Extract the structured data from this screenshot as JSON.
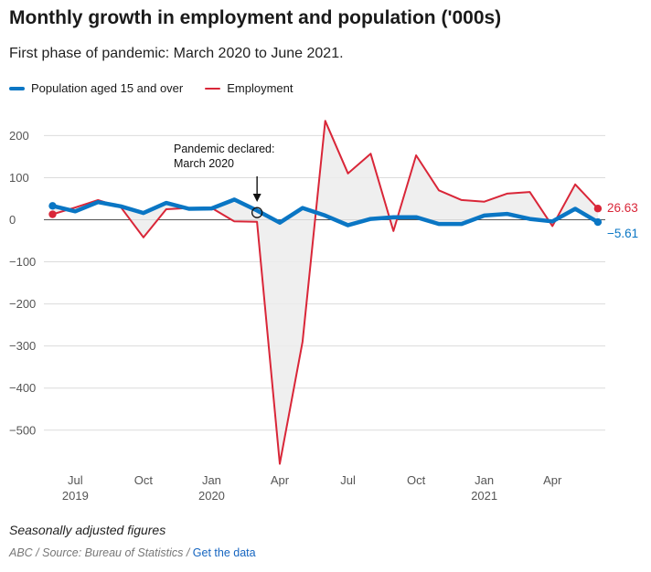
{
  "header": {
    "title": "Monthly growth in employment and population ('000s)",
    "subtitle": "First phase of pandemic: March 2020 to June 2021."
  },
  "legend": {
    "items": [
      {
        "label": "Population aged 15 and over",
        "color": "#0a76c4"
      },
      {
        "label": "Employment",
        "color": "#d92638"
      }
    ]
  },
  "footer": {
    "note": "Seasonally adjusted figures",
    "source_prefix": "ABC / Source: Bureau of Statistics /",
    "data_link": "Get the data"
  },
  "chart_data": {
    "type": "line",
    "title": "Monthly growth in employment and population ('000s)",
    "xlabel": "",
    "ylabel": "",
    "ylim": [
      -580,
      235
    ],
    "yticks": [
      200,
      100,
      0,
      -100,
      -200,
      -300,
      -400,
      -500
    ],
    "ytick_labels": [
      "200",
      "100",
      "0",
      "−100",
      "−200",
      "−300",
      "−400",
      "−500"
    ],
    "x": [
      "2019-06",
      "2019-07",
      "2019-08",
      "2019-09",
      "2019-10",
      "2019-11",
      "2019-12",
      "2020-01",
      "2020-02",
      "2020-03",
      "2020-04",
      "2020-05",
      "2020-06",
      "2020-07",
      "2020-08",
      "2020-09",
      "2020-10",
      "2020-11",
      "2020-12",
      "2021-01",
      "2021-02",
      "2021-03",
      "2021-04",
      "2021-05",
      "2021-06"
    ],
    "xticks": [
      {
        "index": 1,
        "month": "Jul",
        "year": "2019"
      },
      {
        "index": 4,
        "month": "Oct",
        "year": ""
      },
      {
        "index": 7,
        "month": "Jan",
        "year": "2020"
      },
      {
        "index": 10,
        "month": "Apr",
        "year": ""
      },
      {
        "index": 13,
        "month": "Jul",
        "year": ""
      },
      {
        "index": 16,
        "month": "Oct",
        "year": ""
      },
      {
        "index": 19,
        "month": "Jan",
        "year": "2021"
      },
      {
        "index": 22,
        "month": "Apr",
        "year": ""
      }
    ],
    "series": [
      {
        "name": "Population aged 15 and over",
        "color": "#0a76c4",
        "values": [
          33,
          20,
          42,
          32,
          16,
          40,
          26,
          27,
          48,
          22,
          -7,
          28,
          10,
          -13,
          2,
          6,
          6,
          -10,
          -10,
          10,
          14,
          2,
          -4,
          26,
          -5.61
        ]
      },
      {
        "name": "Employment",
        "color": "#d92638",
        "values": [
          13,
          29,
          47,
          30,
          -42,
          25,
          28,
          28,
          -4,
          -5,
          -580,
          -290,
          235,
          110,
          157,
          -27,
          153,
          70,
          47,
          43,
          62,
          66,
          -15,
          84,
          26.63
        ]
      }
    ],
    "end_labels": [
      "−5.61",
      "26.63"
    ],
    "annotation": {
      "index": 9,
      "value": 17,
      "lines": [
        "Pandemic declared:",
        "March 2020"
      ]
    },
    "shading": "between series",
    "grid": true
  }
}
